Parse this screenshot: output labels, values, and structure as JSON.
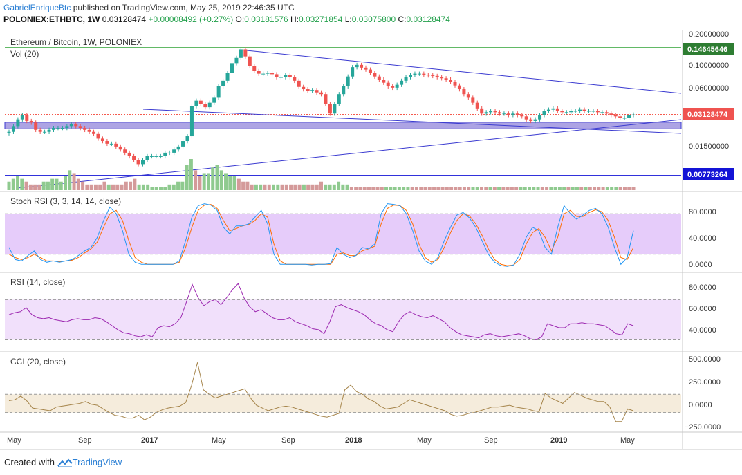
{
  "header": {
    "author": "GabrielEnriqueBtc",
    "published": "published on TradingView.com, May 25, 2019 22:46:35 UTC",
    "symbol": "POLONIEX:ETHBTC, 1W",
    "last": "0.03128474",
    "change": "+0.00008492 (+0.27%)",
    "o_label": "O:",
    "o": "0.03181576",
    "h_label": "H:",
    "h": "0.03271854",
    "l_label": "L:",
    "l": "0.03075800",
    "c_label": "C:",
    "c": "0.03128474"
  },
  "footer": {
    "prefix": "Created with",
    "brand": "TradingView"
  },
  "colors": {
    "up": "#26a69a",
    "down": "#ef5350",
    "trend": "#3a3ad0",
    "zone": "#6a5acd",
    "stoch_k": "#2196f3",
    "stoch_d": "#ff6d00",
    "rsi": "#9c27b0",
    "cci": "#a5844a",
    "price_label": "#f44336",
    "resistance": "#4caf50",
    "support": "#1414d6"
  },
  "chart_data": [
    {
      "type": "candlestick",
      "title": "Ethereum / Bitcoin, 1W, POLONIEX",
      "volume_label": "Vol (20)",
      "scale": "log",
      "ylim": [
        0.0055,
        0.22
      ],
      "y_ticks": [
        "0.20000000",
        "0.10000000",
        "0.06000000",
        "0.01500000"
      ],
      "x_ticks": [
        "May",
        "Sep",
        "2017",
        "May",
        "Sep",
        "2018",
        "May",
        "Sep",
        "2019",
        "May"
      ],
      "resistance": 0.14645646,
      "resistance_label": "0.14645646",
      "last_price": 0.03128474,
      "last_price_label": "0.03128474",
      "support": 0.00773264,
      "support_label": "0.00773264",
      "zone": [
        0.0225,
        0.0262
      ],
      "close_series": [
        0.021,
        0.024,
        0.028,
        0.031,
        0.027,
        0.026,
        0.022,
        0.021,
        0.021,
        0.022,
        0.023,
        0.023,
        0.023,
        0.024,
        0.025,
        0.024,
        0.023,
        0.022,
        0.021,
        0.02,
        0.018,
        0.017,
        0.016,
        0.016,
        0.015,
        0.014,
        0.013,
        0.012,
        0.011,
        0.01,
        0.011,
        0.012,
        0.012,
        0.012,
        0.012,
        0.013,
        0.013,
        0.014,
        0.015,
        0.017,
        0.019,
        0.038,
        0.043,
        0.04,
        0.037,
        0.041,
        0.046,
        0.06,
        0.068,
        0.082,
        0.102,
        0.115,
        0.14,
        0.119,
        0.095,
        0.085,
        0.08,
        0.08,
        0.082,
        0.079,
        0.074,
        0.074,
        0.077,
        0.074,
        0.068,
        0.059,
        0.056,
        0.054,
        0.055,
        0.052,
        0.05,
        0.04,
        0.032,
        0.04,
        0.05,
        0.06,
        0.075,
        0.093,
        0.098,
        0.092,
        0.088,
        0.082,
        0.075,
        0.07,
        0.065,
        0.06,
        0.058,
        0.062,
        0.068,
        0.074,
        0.078,
        0.08,
        0.08,
        0.078,
        0.077,
        0.076,
        0.074,
        0.072,
        0.07,
        0.066,
        0.061,
        0.056,
        0.05,
        0.046,
        0.041,
        0.036,
        0.032,
        0.033,
        0.034,
        0.033,
        0.032,
        0.032,
        0.031,
        0.032,
        0.031,
        0.03,
        0.028,
        0.027,
        0.028,
        0.031,
        0.034,
        0.035,
        0.036,
        0.034,
        0.033,
        0.033,
        0.034,
        0.034,
        0.035,
        0.034,
        0.034,
        0.034,
        0.033,
        0.033,
        0.032,
        0.031,
        0.03,
        0.029,
        0.029,
        0.031,
        0.03128
      ],
      "volume_series": [
        3,
        4,
        5,
        4,
        3,
        2,
        2,
        2,
        3,
        3,
        4,
        4,
        3,
        5,
        7,
        6,
        4,
        3,
        2,
        2,
        2,
        2,
        3,
        2,
        2,
        2,
        2,
        3,
        3,
        4,
        2,
        2,
        2,
        1,
        1,
        1,
        1,
        2,
        2,
        3,
        3,
        9,
        11,
        7,
        5,
        6,
        6,
        8,
        9,
        7,
        6,
        5,
        5,
        4,
        3,
        3,
        2,
        2,
        2,
        2,
        2,
        2,
        2,
        2,
        2,
        2,
        2,
        2,
        2,
        2,
        2,
        2,
        3,
        2,
        2,
        2,
        3,
        2,
        2,
        1,
        1,
        1,
        1,
        1,
        1,
        1,
        1,
        1,
        1,
        1,
        1,
        1,
        1,
        1,
        1,
        1,
        1,
        1,
        1,
        1,
        1,
        1,
        1,
        1,
        1,
        1,
        1,
        1,
        1,
        1,
        1,
        1,
        1,
        1,
        1,
        1,
        1,
        1,
        1,
        1,
        1,
        1,
        1,
        1,
        1,
        1,
        1,
        1,
        1,
        1,
        1,
        1,
        1,
        1,
        1,
        1,
        1,
        1,
        1,
        1,
        1,
        1,
        1,
        1,
        1
      ]
    },
    {
      "type": "line",
      "title": "Stoch RSI (3, 3, 14, 14, close)",
      "ylim": [
        -5,
        110
      ],
      "y_ticks": [
        "80.0000",
        "40.0000",
        "0.0000"
      ],
      "band": [
        20,
        80
      ],
      "series": [
        {
          "role": "k",
          "values": [
            30,
            12,
            10,
            18,
            25,
            12,
            8,
            10,
            8,
            10,
            12,
            18,
            25,
            30,
            45,
            70,
            90,
            80,
            55,
            20,
            8,
            5,
            5,
            5,
            5,
            5,
            5,
            10,
            40,
            75,
            92,
            95,
            93,
            85,
            60,
            50,
            62,
            62,
            65,
            75,
            85,
            65,
            20,
            5,
            5,
            5,
            5,
            5,
            4,
            5,
            5,
            6,
            30,
            20,
            15,
            18,
            30,
            28,
            35,
            80,
            95,
            94,
            92,
            80,
            55,
            25,
            10,
            5,
            15,
            40,
            60,
            78,
            82,
            74,
            60,
            40,
            20,
            8,
            3,
            2,
            4,
            20,
            45,
            60,
            55,
            30,
            20,
            60,
            92,
            80,
            72,
            78,
            85,
            88,
            80,
            60,
            30,
            5,
            15,
            55
          ]
        },
        {
          "role": "d",
          "values": [
            20,
            15,
            12,
            15,
            20,
            15,
            10,
            10,
            9,
            10,
            11,
            15,
            22,
            28,
            38,
            60,
            80,
            85,
            70,
            40,
            15,
            8,
            5,
            5,
            5,
            5,
            5,
            8,
            30,
            60,
            85,
            93,
            94,
            88,
            70,
            55,
            58,
            62,
            64,
            70,
            80,
            75,
            35,
            10,
            5,
            5,
            5,
            5,
            5,
            5,
            5,
            5,
            20,
            22,
            18,
            18,
            25,
            28,
            32,
            65,
            88,
            93,
            92,
            85,
            65,
            35,
            15,
            8,
            12,
            30,
            52,
            70,
            80,
            77,
            65,
            48,
            28,
            12,
            5,
            3,
            4,
            12,
            35,
            52,
            58,
            45,
            25,
            45,
            80,
            85,
            76,
            76,
            82,
            86,
            83,
            70,
            45,
            15,
            12,
            30
          ]
        }
      ]
    },
    {
      "type": "line",
      "title": "RSI (14, close)",
      "ylim": [
        20,
        95
      ],
      "y_ticks": [
        "80.0000",
        "60.0000",
        "40.0000"
      ],
      "band": [
        30,
        70
      ],
      "values": [
        55,
        57,
        58,
        62,
        55,
        52,
        51,
        52,
        50,
        49,
        48,
        50,
        51,
        50,
        50,
        52,
        51,
        48,
        44,
        40,
        37,
        36,
        34,
        33,
        35,
        33,
        42,
        44,
        43,
        46,
        52,
        68,
        85,
        72,
        64,
        68,
        70,
        65,
        72,
        80,
        86,
        72,
        63,
        58,
        60,
        56,
        52,
        50,
        50,
        52,
        48,
        46,
        44,
        41,
        40,
        36,
        48,
        63,
        65,
        62,
        60,
        58,
        55,
        50,
        46,
        44,
        40,
        38,
        48,
        55,
        58,
        55,
        53,
        52,
        54,
        51,
        48,
        42,
        38,
        35,
        34,
        33,
        32,
        35,
        36,
        34,
        33,
        34,
        35,
        36,
        34,
        31,
        30,
        33,
        46,
        44,
        42,
        42,
        46,
        46,
        47,
        46,
        46,
        45,
        44,
        40,
        36,
        35,
        46,
        44
      ]
    },
    {
      "type": "line",
      "title": "CCI (20, close)",
      "ylim": [
        -300,
        550
      ],
      "y_ticks": [
        "500.0000",
        "250.0000",
        "0.0000",
        "−250.0000"
      ],
      "band": [
        -100,
        100
      ],
      "values": [
        30,
        40,
        80,
        30,
        -50,
        -60,
        -70,
        -80,
        -40,
        -30,
        -20,
        -10,
        0,
        20,
        -10,
        -20,
        -60,
        -100,
        -130,
        -140,
        -160,
        -160,
        -130,
        -180,
        -150,
        -100,
        -70,
        -50,
        -40,
        -30,
        10,
        200,
        450,
        150,
        100,
        60,
        80,
        100,
        120,
        140,
        160,
        60,
        -20,
        -50,
        -80,
        -60,
        -40,
        -30,
        -40,
        -60,
        -80,
        -100,
        -120,
        -140,
        -150,
        -130,
        -110,
        150,
        200,
        130,
        100,
        50,
        20,
        -30,
        -60,
        -50,
        -40,
        0,
        40,
        20,
        0,
        -20,
        -40,
        -60,
        -80,
        -120,
        -140,
        -130,
        -110,
        -100,
        -80,
        -60,
        -40,
        -40,
        -30,
        -20,
        -40,
        -50,
        -60,
        -80,
        -90,
        110,
        60,
        30,
        0,
        60,
        120,
        90,
        60,
        40,
        20,
        20,
        -40,
        -200,
        -200,
        -60,
        -80
      ]
    }
  ]
}
